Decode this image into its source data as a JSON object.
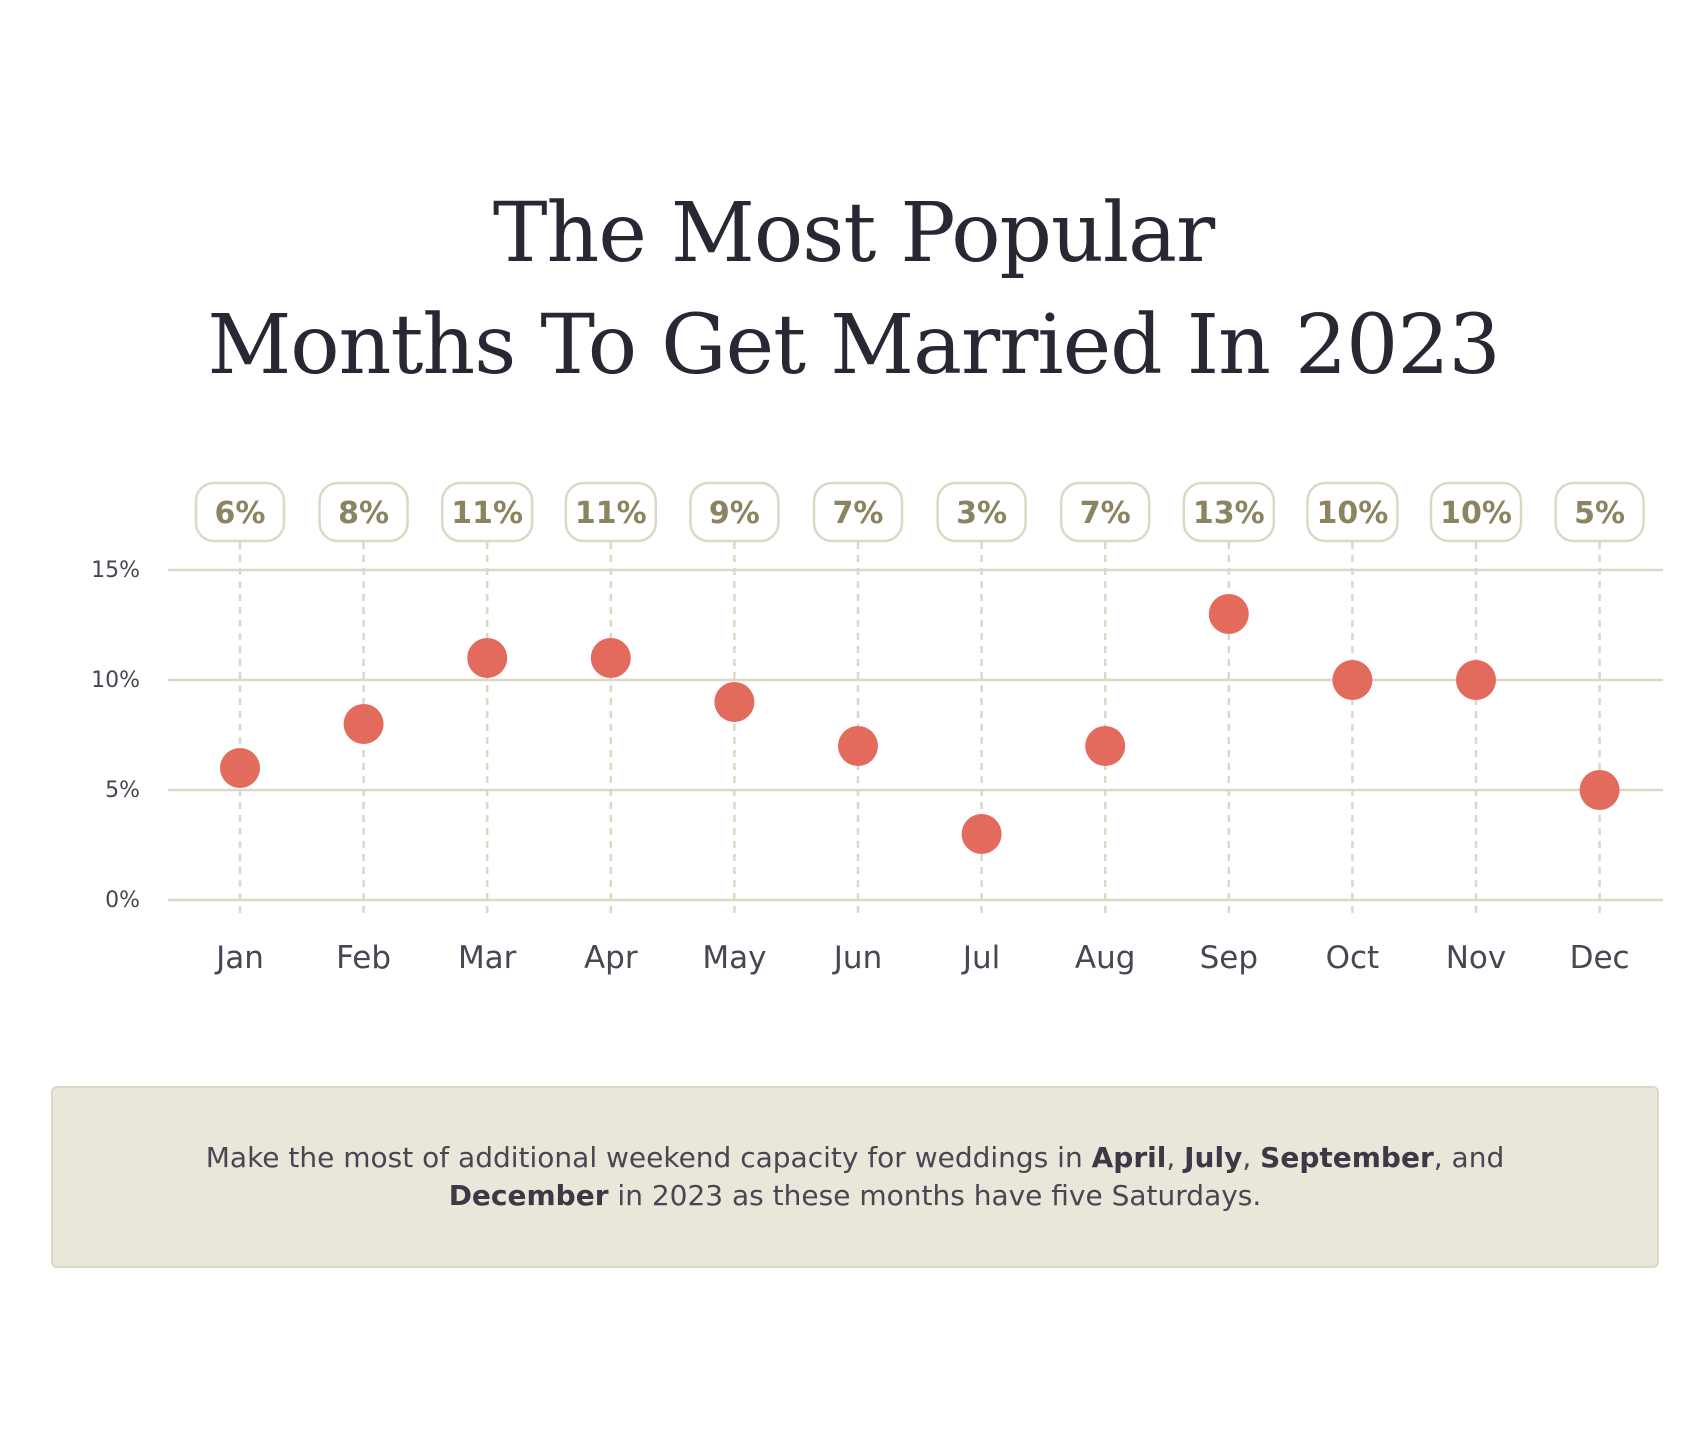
{
  "title": {
    "line1": "The Most Popular",
    "line2": "Months To Get Married In 2023"
  },
  "chart_data": {
    "type": "scatter",
    "categories": [
      "Jan",
      "Feb",
      "Mar",
      "Apr",
      "May",
      "Jun",
      "Jul",
      "Aug",
      "Sep",
      "Oct",
      "Nov",
      "Dec"
    ],
    "values": [
      6,
      8,
      11,
      11,
      9,
      7,
      3,
      7,
      13,
      10,
      10,
      5
    ],
    "data_labels": [
      "6%",
      "8%",
      "11%",
      "11%",
      "9%",
      "7%",
      "3%",
      "7%",
      "13%",
      "10%",
      "10%",
      "5%"
    ],
    "y_ticks": [
      0,
      5,
      10,
      15
    ],
    "y_tick_labels": [
      "0%",
      "5%",
      "10%",
      "15%"
    ],
    "ylim": [
      0,
      15
    ],
    "grid": true,
    "colors": {
      "point": "#e36b5e",
      "gridline": "#dcd8c3",
      "dashed_guide": "#dcd8c3",
      "label_text": "#8b8460",
      "label_border": "#dcd8c3",
      "axis_text": "#4a4552"
    }
  },
  "note": {
    "part1": "Make the most of additional weekend capacity for weddings in ",
    "bold1": "April",
    "sep1": ", ",
    "bold2": "July",
    "sep2": ", ",
    "bold3": "September",
    "sep3": ", and ",
    "bold4": "December",
    "part2": " in 2023 as these months have five Saturdays."
  }
}
